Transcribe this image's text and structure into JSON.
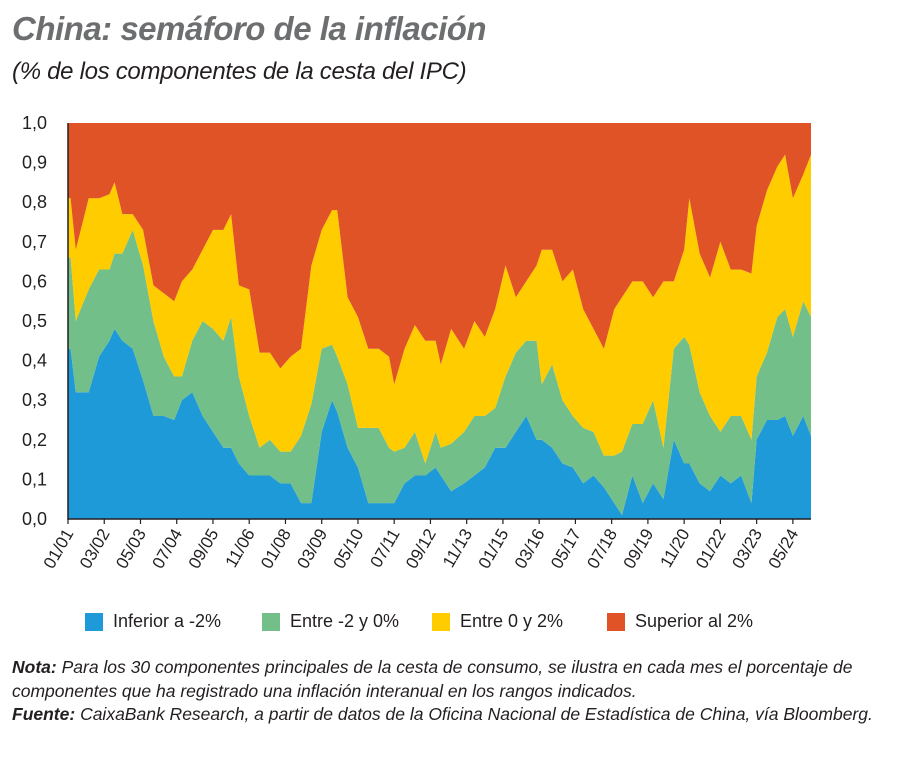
{
  "title": "China: semáforo de la inflación",
  "subtitle": "(% de los componentes de la cesta del IPC)",
  "notes": {
    "nota_label": "Nota:",
    "nota_text": " Para los 30 componentes principales de la cesta de consumo, se ilustra en cada mes el porcentaje de componentes que ha registrado una inflación interanual en los rangos indicados.",
    "fuente_label": "Fuente:",
    "fuente_text": " CaixaBank Research, a partir de datos de la Oficina Nacional de Estadística de China, vía Bloomberg."
  },
  "chart_data": {
    "type": "area",
    "stacked": true,
    "title": "China: semáforo de la inflación",
    "xlabel": "",
    "ylabel": "",
    "ylim": [
      0,
      1
    ],
    "xlim": [
      "2001-01",
      "2024-12"
    ],
    "y_ticks": [
      "0,0",
      "0,1",
      "0,2",
      "0,3",
      "0,4",
      "0,5",
      "0,6",
      "0,7",
      "0,8",
      "0,9",
      "1,0"
    ],
    "x_ticks": [
      "01/01",
      "03/02",
      "05/03",
      "07/04",
      "09/05",
      "11/06",
      "01/08",
      "03/09",
      "05/10",
      "07/11",
      "09/12",
      "11/13",
      "01/15",
      "03/16",
      "05/17",
      "07/18",
      "09/19",
      "11/20",
      "01/22",
      "03/23",
      "05/24"
    ],
    "legend_position": "bottom",
    "grid": false,
    "x": [
      "2001-01",
      "2001-02",
      "2001-04",
      "2001-09",
      "2002-01",
      "2002-05",
      "2002-07",
      "2002-10",
      "2003-02",
      "2003-06",
      "2003-10",
      "2004-02",
      "2004-06",
      "2004-09",
      "2005-01",
      "2005-05",
      "2005-09",
      "2006-01",
      "2006-04",
      "2006-07",
      "2006-11",
      "2007-03",
      "2007-07",
      "2007-11",
      "2008-03",
      "2008-07",
      "2008-11",
      "2009-03",
      "2009-07",
      "2009-09",
      "2010-01",
      "2010-05",
      "2010-09",
      "2011-01",
      "2011-05",
      "2011-07",
      "2011-11",
      "2012-03",
      "2012-07",
      "2012-11",
      "2013-01",
      "2013-05",
      "2013-10",
      "2014-02",
      "2014-06",
      "2014-10",
      "2015-02",
      "2015-06",
      "2015-10",
      "2016-02",
      "2016-04",
      "2016-08",
      "2016-12",
      "2017-04",
      "2017-08",
      "2017-12",
      "2018-04",
      "2018-08",
      "2018-11",
      "2019-03",
      "2019-07",
      "2019-11",
      "2020-03",
      "2020-07",
      "2020-11",
      "2021-01",
      "2021-05",
      "2021-09",
      "2022-01",
      "2022-05",
      "2022-09",
      "2023-01",
      "2023-03",
      "2023-07",
      "2023-11",
      "2024-02",
      "2024-05",
      "2024-09",
      "2024-12"
    ],
    "series": [
      {
        "name": "Inferior a -2%",
        "color": "#1e9ad8",
        "values": [
          0.43,
          0.43,
          0.32,
          0.32,
          0.41,
          0.45,
          0.48,
          0.45,
          0.43,
          0.35,
          0.26,
          0.26,
          0.25,
          0.3,
          0.32,
          0.26,
          0.22,
          0.18,
          0.18,
          0.14,
          0.11,
          0.11,
          0.11,
          0.09,
          0.09,
          0.04,
          0.04,
          0.22,
          0.3,
          0.27,
          0.18,
          0.13,
          0.04,
          0.04,
          0.04,
          0.04,
          0.09,
          0.11,
          0.11,
          0.13,
          0.11,
          0.07,
          0.09,
          0.11,
          0.13,
          0.18,
          0.18,
          0.22,
          0.26,
          0.2,
          0.2,
          0.18,
          0.14,
          0.13,
          0.09,
          0.11,
          0.08,
          0.04,
          0.01,
          0.11,
          0.04,
          0.09,
          0.05,
          0.2,
          0.14,
          0.14,
          0.09,
          0.07,
          0.11,
          0.09,
          0.11,
          0.04,
          0.2,
          0.25,
          0.25,
          0.26,
          0.21,
          0.26,
          0.21
        ]
      },
      {
        "name": "Entre -2 y 0%",
        "color": "#72bf8a",
        "values": [
          0.23,
          0.23,
          0.18,
          0.26,
          0.22,
          0.18,
          0.19,
          0.22,
          0.3,
          0.29,
          0.24,
          0.15,
          0.11,
          0.06,
          0.13,
          0.24,
          0.26,
          0.27,
          0.33,
          0.22,
          0.15,
          0.07,
          0.09,
          0.08,
          0.08,
          0.17,
          0.25,
          0.21,
          0.14,
          0.14,
          0.16,
          0.1,
          0.19,
          0.19,
          0.14,
          0.13,
          0.09,
          0.11,
          0.03,
          0.09,
          0.07,
          0.12,
          0.13,
          0.15,
          0.13,
          0.1,
          0.18,
          0.2,
          0.19,
          0.25,
          0.14,
          0.21,
          0.16,
          0.13,
          0.14,
          0.11,
          0.08,
          0.12,
          0.16,
          0.13,
          0.2,
          0.21,
          0.13,
          0.23,
          0.32,
          0.3,
          0.23,
          0.19,
          0.11,
          0.17,
          0.15,
          0.16,
          0.16,
          0.17,
          0.26,
          0.27,
          0.25,
          0.29,
          0.3
        ]
      },
      {
        "name": "Entre 0 y 2%",
        "color": "#ffcc00",
        "values": [
          0.15,
          0.15,
          0.18,
          0.23,
          0.18,
          0.19,
          0.18,
          0.1,
          0.04,
          0.09,
          0.09,
          0.16,
          0.19,
          0.24,
          0.18,
          0.18,
          0.25,
          0.28,
          0.26,
          0.23,
          0.32,
          0.24,
          0.22,
          0.21,
          0.24,
          0.22,
          0.35,
          0.3,
          0.34,
          0.37,
          0.22,
          0.28,
          0.2,
          0.2,
          0.23,
          0.17,
          0.25,
          0.27,
          0.31,
          0.23,
          0.21,
          0.29,
          0.21,
          0.24,
          0.2,
          0.25,
          0.28,
          0.14,
          0.15,
          0.19,
          0.34,
          0.29,
          0.3,
          0.37,
          0.3,
          0.26,
          0.27,
          0.37,
          0.39,
          0.36,
          0.36,
          0.26,
          0.42,
          0.17,
          0.22,
          0.37,
          0.35,
          0.35,
          0.48,
          0.37,
          0.37,
          0.42,
          0.38,
          0.41,
          0.38,
          0.39,
          0.35,
          0.32,
          0.41
        ]
      },
      {
        "name": "Superior al 2%",
        "color": "#e05326",
        "values": [
          0.19,
          0.19,
          0.32,
          0.19,
          0.19,
          0.18,
          0.15,
          0.23,
          0.23,
          0.27,
          0.41,
          0.43,
          0.45,
          0.4,
          0.37,
          0.32,
          0.27,
          0.27,
          0.23,
          0.41,
          0.42,
          0.58,
          0.58,
          0.62,
          0.59,
          0.57,
          0.36,
          0.27,
          0.22,
          0.22,
          0.44,
          0.49,
          0.57,
          0.57,
          0.59,
          0.66,
          0.57,
          0.51,
          0.55,
          0.55,
          0.61,
          0.52,
          0.57,
          0.5,
          0.54,
          0.47,
          0.36,
          0.44,
          0.4,
          0.36,
          0.32,
          0.32,
          0.4,
          0.37,
          0.47,
          0.52,
          0.57,
          0.47,
          0.44,
          0.4,
          0.4,
          0.44,
          0.4,
          0.4,
          0.32,
          0.19,
          0.33,
          0.39,
          0.3,
          0.37,
          0.37,
          0.38,
          0.26,
          0.17,
          0.11,
          0.08,
          0.19,
          0.13,
          0.08
        ]
      }
    ]
  }
}
